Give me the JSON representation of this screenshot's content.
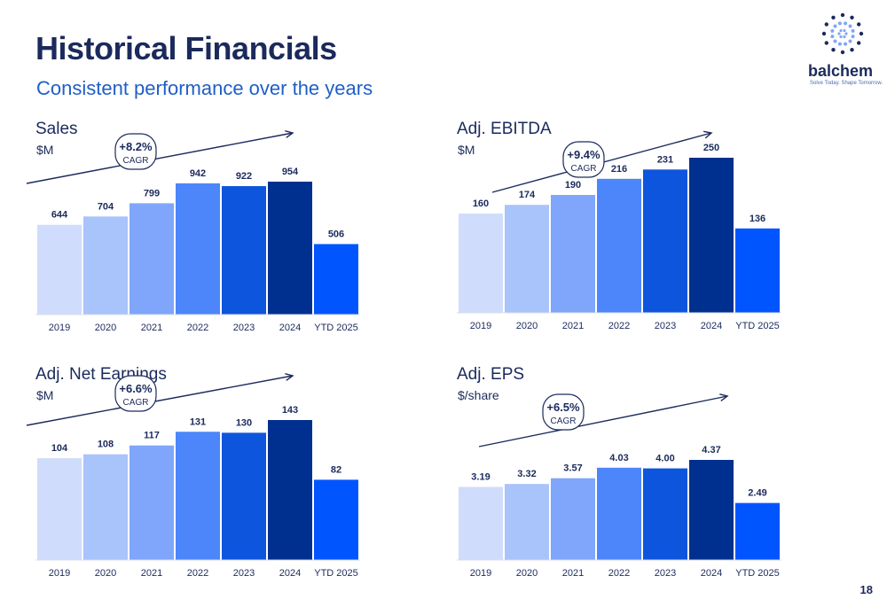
{
  "page": {
    "title": "Historical Financials",
    "subtitle": "Consistent performance over the years",
    "page_number": "18"
  },
  "logo": {
    "brand": "balchem",
    "tagline": "Solve Today. Shape Tomorrow."
  },
  "colors": {
    "bars": [
      "#cfdcfb",
      "#a9c3fb",
      "#7fa6fb",
      "#4c86fa",
      "#0e55de",
      "#00308f",
      "#0055ff"
    ],
    "title": "#1b2a5c",
    "subtitle": "#1f5fc6"
  },
  "chart_data": [
    {
      "type": "bar",
      "title": "Sales",
      "unit": "$M",
      "categories": [
        "2019",
        "2020",
        "2021",
        "2022",
        "2023",
        "2024",
        "YTD 2025"
      ],
      "values": [
        644,
        704,
        799,
        942,
        922,
        954,
        506
      ],
      "value_labels": [
        "644",
        "704",
        "799",
        "942",
        "922",
        "954",
        "506"
      ],
      "cagr": "+8.2%",
      "cagr_label": "CAGR"
    },
    {
      "type": "bar",
      "title": "Adj. EBITDA",
      "unit": "$M",
      "categories": [
        "2019",
        "2020",
        "2021",
        "2022",
        "2023",
        "2024",
        "YTD 2025"
      ],
      "values": [
        160,
        174,
        190,
        216,
        231,
        250,
        136
      ],
      "value_labels": [
        "160",
        "174",
        "190",
        "216",
        "231",
        "250",
        "136"
      ],
      "cagr": "+9.4%",
      "cagr_label": "CAGR"
    },
    {
      "type": "bar",
      "title": "Adj. Net Earnings",
      "unit": "$M",
      "categories": [
        "2019",
        "2020",
        "2021",
        "2022",
        "2023",
        "2024",
        "YTD 2025"
      ],
      "values": [
        104,
        108,
        117,
        131,
        130,
        143,
        82
      ],
      "value_labels": [
        "104",
        "108",
        "117",
        "131",
        "130",
        "143",
        "82"
      ],
      "cagr": "+6.6%",
      "cagr_label": "CAGR"
    },
    {
      "type": "bar",
      "title": "Adj. EPS",
      "unit": "$/share",
      "categories": [
        "2019",
        "2020",
        "2021",
        "2022",
        "2023",
        "2024",
        "YTD 2025"
      ],
      "values": [
        3.19,
        3.32,
        3.57,
        4.03,
        4.0,
        4.37,
        2.49
      ],
      "value_labels": [
        "3.19",
        "3.32",
        "3.57",
        "4.03",
        "4.00",
        "4.37",
        "2.49"
      ],
      "cagr": "+6.5%",
      "cagr_label": "CAGR"
    }
  ]
}
